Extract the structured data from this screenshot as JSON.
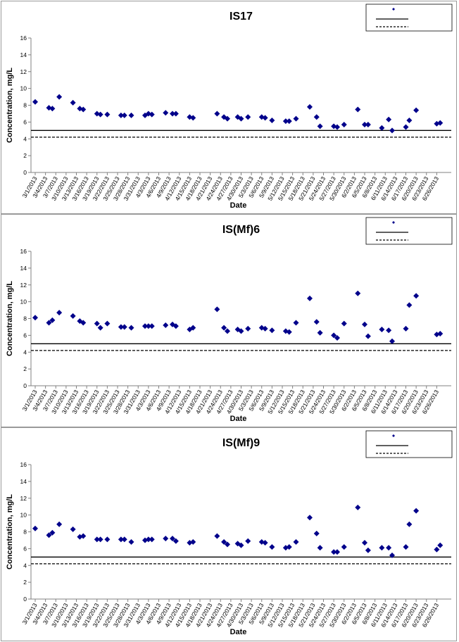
{
  "chart_data": [
    {
      "type": "scatter",
      "title": "IS17",
      "xlabel": "Date",
      "ylabel": "Concentration, mg/L",
      "ylim": [
        0,
        16
      ],
      "yticks": [
        0,
        2,
        4,
        6,
        8,
        10,
        12,
        14,
        16
      ],
      "x_tick_labels": [
        "3/1/2013",
        "3/4/2013",
        "3/7/2013",
        "3/10/2013",
        "3/13/2013",
        "3/16/2013",
        "3/19/2013",
        "3/22/2013",
        "3/25/2013",
        "3/28/2013",
        "3/31/2013",
        "4/3/2013",
        "4/6/2013",
        "4/9/2013",
        "4/12/2013",
        "4/15/2013",
        "4/18/2013",
        "4/21/2013",
        "4/24/2013",
        "4/27/2013",
        "4/30/2013",
        "5/3/2013",
        "5/6/2013",
        "5/9/2013",
        "5/12/2013",
        "5/15/2013",
        "5/18/2013",
        "5/21/2013",
        "5/24/2013",
        "5/27/2013",
        "5/30/2013",
        "6/2/2013",
        "6/5/2013",
        "6/8/2013",
        "6/11/2013",
        "6/14/2013",
        "6/17/2013",
        "6/20/2013",
        "6/23/2013",
        "6/26/2013"
      ],
      "series": [
        {
          "marker": "diamond",
          "color": "#00008B",
          "x": [
            "3/1/2013",
            "3/5/2013",
            "3/6/2013",
            "3/8/2013",
            "3/12/2013",
            "3/14/2013",
            "3/15/2013",
            "3/19/2013",
            "3/20/2013",
            "3/22/2013",
            "3/26/2013",
            "3/27/2013",
            "3/29/2013",
            "4/2/2013",
            "4/3/2013",
            "4/4/2013",
            "4/8/2013",
            "4/10/2013",
            "4/11/2013",
            "4/15/2013",
            "4/16/2013",
            "4/23/2013",
            "4/25/2013",
            "4/26/2013",
            "4/29/2013",
            "4/30/2013",
            "5/2/2013",
            "5/6/2013",
            "5/7/2013",
            "5/9/2013",
            "5/13/2013",
            "5/14/2013",
            "5/16/2013",
            "5/20/2013",
            "5/22/2013",
            "5/23/2013",
            "5/27/2013",
            "5/28/2013",
            "5/30/2013",
            "6/3/2013",
            "6/5/2013",
            "6/6/2013",
            "6/10/2013",
            "6/12/2013",
            "6/13/2013",
            "6/17/2013",
            "6/18/2013",
            "6/20/2013",
            "6/26/2013",
            "6/27/2013"
          ],
          "values": [
            8.4,
            7.7,
            7.6,
            9.0,
            8.3,
            7.6,
            7.5,
            7.0,
            6.9,
            6.9,
            6.8,
            6.8,
            6.8,
            6.8,
            7.0,
            6.9,
            7.1,
            7.0,
            7.0,
            6.6,
            6.5,
            7.0,
            6.6,
            6.4,
            6.6,
            6.4,
            6.6,
            6.6,
            6.5,
            6.2,
            6.1,
            6.1,
            6.4,
            7.8,
            6.6,
            5.5,
            5.5,
            5.4,
            5.7,
            7.5,
            5.7,
            5.7,
            5.3,
            6.3,
            5.0,
            5.4,
            6.2,
            7.4,
            5.8,
            5.9
          ]
        }
      ],
      "reference_lines": [
        {
          "style": "solid",
          "value": 5.0
        },
        {
          "style": "dashed",
          "value": 4.2
        }
      ],
      "legend_position": "top-right"
    },
    {
      "type": "scatter",
      "title": "IS(Mf)6",
      "xlabel": "Date",
      "ylabel": "Concentration, mg/L",
      "ylim": [
        0,
        16
      ],
      "yticks": [
        0,
        2,
        4,
        6,
        8,
        10,
        12,
        14,
        16
      ],
      "x_tick_labels": [
        "3/1/2013",
        "3/4/2013",
        "3/7/2013",
        "3/10/2013",
        "3/13/2013",
        "3/16/2013",
        "3/19/2013",
        "3/22/2013",
        "3/25/2013",
        "3/28/2013",
        "3/31/2013",
        "4/3/2013",
        "4/6/2013",
        "4/9/2013",
        "4/12/2013",
        "4/15/2013",
        "4/18/2013",
        "4/21/2013",
        "4/24/2013",
        "4/27/2013",
        "4/30/2013",
        "5/3/2013",
        "5/6/2013",
        "5/9/2013",
        "5/12/2013",
        "5/15/2013",
        "5/18/2013",
        "5/21/2013",
        "5/24/2013",
        "5/27/2013",
        "5/30/2013",
        "6/2/2013",
        "6/5/2013",
        "6/8/2013",
        "6/11/2013",
        "6/14/2013",
        "6/17/2013",
        "6/20/2013",
        "6/23/2013",
        "6/26/2013"
      ],
      "series": [
        {
          "marker": "diamond",
          "color": "#00008B",
          "x": [
            "3/1/2013",
            "3/5/2013",
            "3/6/2013",
            "3/8/2013",
            "3/12/2013",
            "3/14/2013",
            "3/15/2013",
            "3/19/2013",
            "3/20/2013",
            "3/22/2013",
            "3/26/2013",
            "3/27/2013",
            "3/29/2013",
            "4/2/2013",
            "4/3/2013",
            "4/4/2013",
            "4/8/2013",
            "4/10/2013",
            "4/11/2013",
            "4/15/2013",
            "4/16/2013",
            "4/23/2013",
            "4/25/2013",
            "4/26/2013",
            "4/29/2013",
            "4/30/2013",
            "5/2/2013",
            "5/6/2013",
            "5/7/2013",
            "5/9/2013",
            "5/13/2013",
            "5/14/2013",
            "5/16/2013",
            "5/20/2013",
            "5/22/2013",
            "5/23/2013",
            "5/27/2013",
            "5/28/2013",
            "5/30/2013",
            "6/3/2013",
            "6/5/2013",
            "6/6/2013",
            "6/10/2013",
            "6/12/2013",
            "6/13/2013",
            "6/17/2013",
            "6/18/2013",
            "6/20/2013",
            "6/26/2013",
            "6/27/2013"
          ],
          "values": [
            8.1,
            7.5,
            7.8,
            8.7,
            8.3,
            7.7,
            7.5,
            7.4,
            6.9,
            7.4,
            7.0,
            7.0,
            6.9,
            7.1,
            7.1,
            7.1,
            7.2,
            7.3,
            7.1,
            6.7,
            6.9,
            9.1,
            6.9,
            6.5,
            6.7,
            6.5,
            6.8,
            6.9,
            6.8,
            6.6,
            6.5,
            6.4,
            7.5,
            10.4,
            7.6,
            6.3,
            6.0,
            5.7,
            7.4,
            11.0,
            7.3,
            5.9,
            6.7,
            6.6,
            5.3,
            6.8,
            9.6,
            10.7,
            6.1,
            6.2
          ]
        }
      ],
      "reference_lines": [
        {
          "style": "solid",
          "value": 5.0
        },
        {
          "style": "dashed",
          "value": 4.2
        }
      ],
      "legend_position": "top-right"
    },
    {
      "type": "scatter",
      "title": "IS(Mf)9",
      "xlabel": "Date",
      "ylabel": "Concentration, mg/L",
      "ylim": [
        0,
        16
      ],
      "yticks": [
        0,
        2,
        4,
        6,
        8,
        10,
        12,
        14,
        16
      ],
      "x_tick_labels": [
        "3/1/2013",
        "3/4/2013",
        "3/7/2013",
        "3/10/2013",
        "3/13/2013",
        "3/16/2013",
        "3/19/2013",
        "3/22/2013",
        "3/25/2013",
        "3/28/2013",
        "3/31/2013",
        "4/3/2013",
        "4/6/2013",
        "4/9/2013",
        "4/12/2013",
        "4/15/2013",
        "4/18/2013",
        "4/21/2013",
        "4/24/2013",
        "4/27/2013",
        "4/30/2013",
        "5/3/2013",
        "5/6/2013",
        "5/9/2013",
        "5/12/2013",
        "5/15/2013",
        "5/18/2013",
        "5/21/2013",
        "5/24/2013",
        "5/27/2013",
        "5/30/2013",
        "6/2/2013",
        "6/5/2013",
        "6/8/2013",
        "6/11/2013",
        "6/14/2013",
        "6/17/2013",
        "6/20/2013",
        "6/23/2013",
        "6/26/2013"
      ],
      "series": [
        {
          "marker": "diamond",
          "color": "#00008B",
          "x": [
            "3/1/2013",
            "3/5/2013",
            "3/6/2013",
            "3/8/2013",
            "3/12/2013",
            "3/14/2013",
            "3/15/2013",
            "3/19/2013",
            "3/20/2013",
            "3/22/2013",
            "3/26/2013",
            "3/27/2013",
            "3/29/2013",
            "4/2/2013",
            "4/3/2013",
            "4/4/2013",
            "4/8/2013",
            "4/10/2013",
            "4/11/2013",
            "4/15/2013",
            "4/16/2013",
            "4/23/2013",
            "4/25/2013",
            "4/26/2013",
            "4/29/2013",
            "4/30/2013",
            "5/2/2013",
            "5/6/2013",
            "5/7/2013",
            "5/9/2013",
            "5/13/2013",
            "5/14/2013",
            "5/16/2013",
            "5/20/2013",
            "5/22/2013",
            "5/23/2013",
            "5/27/2013",
            "5/28/2013",
            "5/30/2013",
            "6/3/2013",
            "6/5/2013",
            "6/6/2013",
            "6/10/2013",
            "6/12/2013",
            "6/13/2013",
            "6/17/2013",
            "6/18/2013",
            "6/20/2013",
            "6/26/2013",
            "6/27/2013"
          ],
          "values": [
            8.4,
            7.6,
            7.9,
            8.9,
            8.3,
            7.4,
            7.5,
            7.1,
            7.1,
            7.1,
            7.1,
            7.1,
            6.8,
            7.0,
            7.1,
            7.1,
            7.2,
            7.2,
            6.9,
            6.7,
            6.8,
            7.5,
            6.8,
            6.5,
            6.6,
            6.4,
            6.9,
            6.8,
            6.7,
            6.2,
            6.1,
            6.2,
            6.8,
            9.7,
            7.8,
            6.1,
            5.6,
            5.6,
            6.2,
            10.9,
            6.7,
            5.8,
            6.1,
            6.1,
            5.2,
            6.2,
            8.9,
            10.5,
            5.9,
            6.4
          ]
        }
      ],
      "reference_lines": [
        {
          "style": "solid",
          "value": 5.0
        },
        {
          "style": "dashed",
          "value": 4.2
        }
      ],
      "legend_position": "top-right"
    }
  ]
}
